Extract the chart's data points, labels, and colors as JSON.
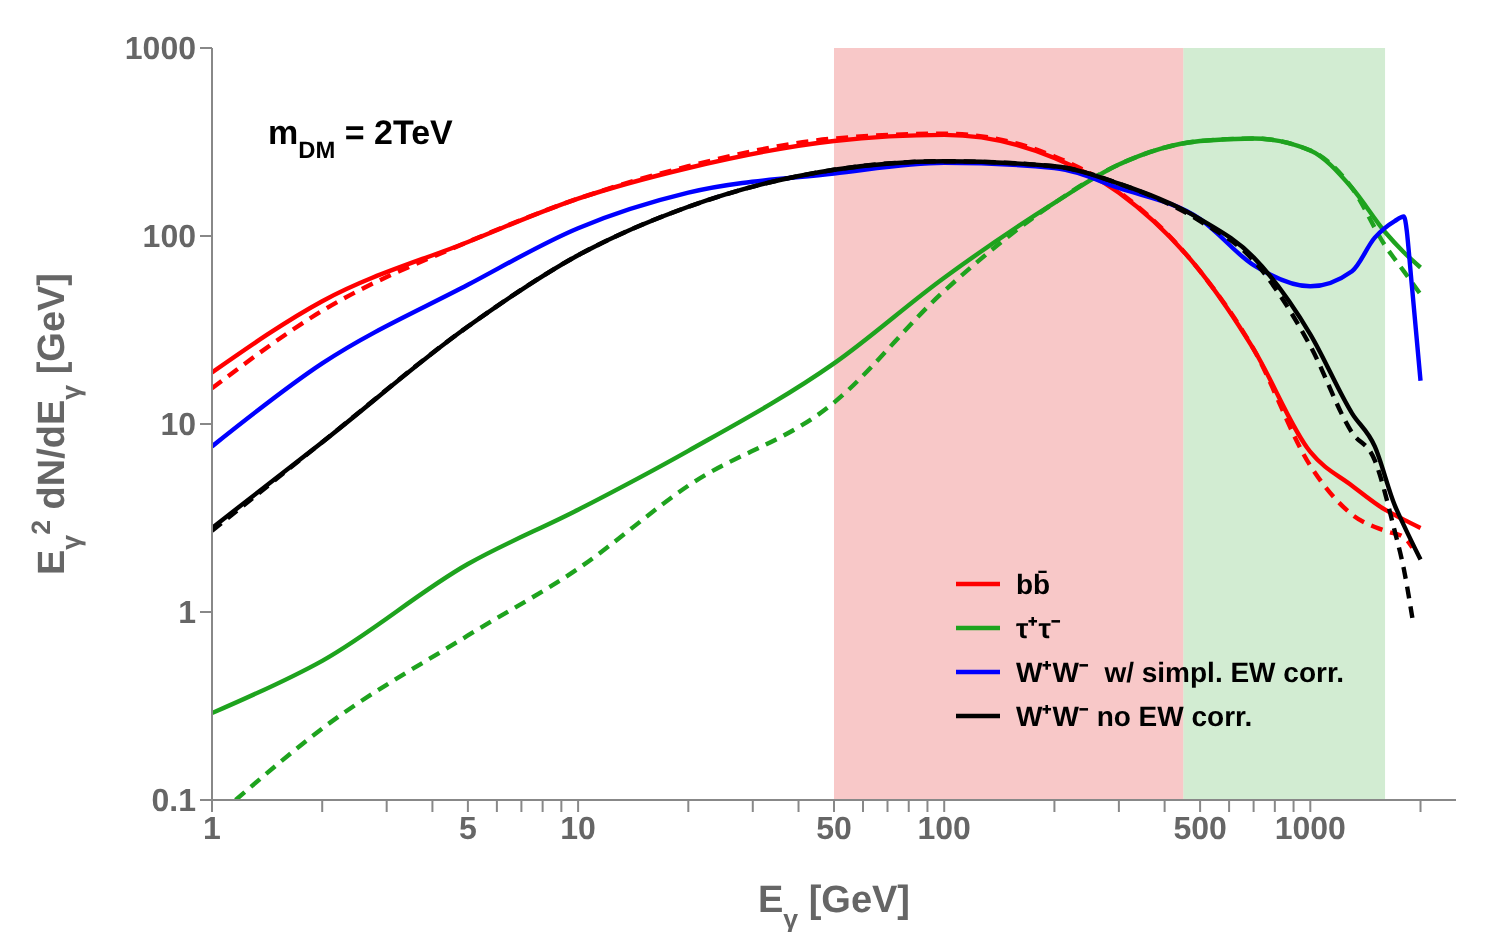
{
  "chart_data": {
    "type": "line",
    "xlabel": "E$_{γ}$ [GeV]",
    "ylabel": "E$_{γ}$$^{2}$ dN/dE$_{γ}$ [GeV]",
    "annotations": [
      "m$_{DM}$ = 2TeV"
    ],
    "log": "xy",
    "xlim": [
      1,
      2500
    ],
    "ylim": [
      0.1,
      1000
    ],
    "xticks": [
      1,
      {
        "value": 2,
        "label": null
      },
      {
        "value": 3,
        "label": null
      },
      {
        "value": 4,
        "label": null
      },
      5,
      {
        "value": 6,
        "label": null
      },
      {
        "value": 7,
        "label": null
      },
      {
        "value": 8,
        "label": null
      },
      {
        "value": 9,
        "label": null
      },
      10,
      {
        "value": 20,
        "label": null
      },
      {
        "value": 30,
        "label": null
      },
      {
        "value": 40,
        "label": null
      },
      50,
      {
        "value": 60,
        "label": null
      },
      {
        "value": 70,
        "label": null
      },
      {
        "value": 80,
        "label": null
      },
      {
        "value": 90,
        "label": null
      },
      100,
      {
        "value": 200,
        "label": null
      },
      {
        "value": 300,
        "label": null
      },
      {
        "value": 400,
        "label": null
      },
      500,
      {
        "value": 600,
        "label": null
      },
      {
        "value": 700,
        "label": null
      },
      {
        "value": 800,
        "label": null
      },
      {
        "value": 900,
        "label": null
      },
      1000,
      {
        "value": 2000,
        "label": null
      }
    ],
    "yticks": [
      0.1,
      1,
      10,
      100,
      1000
    ],
    "legend": "bottom right",
    "bands": [
      {
        "axis": "x",
        "from": 50,
        "to": 450,
        "color": "#f4a3a3"
      },
      {
        "axis": "x",
        "from": 450,
        "to": 1600,
        "color": "#b4e0b4"
      }
    ],
    "series": [
      {
        "name": "bb̄",
        "color": "#ff0000",
        "line_style": "solid",
        "x": [
          1,
          2,
          5,
          10,
          20,
          50,
          100,
          200,
          300,
          500,
          700,
          1000,
          1300,
          1600,
          1800,
          2000
        ],
        "values": [
          18.8,
          45,
          93,
          158,
          230,
          320,
          345,
          260,
          170,
          65,
          25,
          7.1,
          4.7,
          3.5,
          3.1,
          2.8
        ]
      },
      {
        "color": "#ff0000",
        "line_style": "dashed",
        "x": [
          1,
          2,
          5,
          10,
          20,
          50,
          100,
          200,
          300,
          500,
          700,
          1000,
          1300,
          1600,
          1800,
          1900
        ],
        "values": [
          15.5,
          40,
          93,
          158,
          235,
          330,
          350,
          265,
          172,
          65,
          25,
          6,
          3.3,
          2.7,
          2.5,
          2.2
        ]
      },
      {
        "name": "τ⁺τ⁻",
        "color": "#1ea31e",
        "line_style": "solid",
        "x": [
          1,
          2,
          5,
          10,
          20,
          50,
          100,
          200,
          300,
          500,
          700,
          1000,
          1300,
          1600,
          1800,
          2000
        ],
        "values": [
          0.29,
          0.55,
          1.8,
          3.5,
          7.2,
          21,
          60,
          150,
          240,
          320,
          330,
          285,
          180,
          105,
          82,
          68
        ]
      },
      {
        "color": "#1ea31e",
        "line_style": "dashed",
        "x": [
          1.16,
          2,
          5,
          10,
          20,
          50,
          100,
          200,
          300,
          500,
          700,
          1000,
          1300,
          1600,
          1800,
          2000
        ],
        "values": [
          0.1,
          0.24,
          0.75,
          1.7,
          4.7,
          13,
          51,
          150,
          240,
          320,
          330,
          285,
          180,
          89,
          65,
          49
        ]
      },
      {
        "name": "W⁺W⁻  w/ simpl. EW corr.",
        "color": "#0000ff",
        "line_style": "solid",
        "x": [
          1,
          2,
          5,
          10,
          20,
          50,
          100,
          200,
          300,
          500,
          700,
          1000,
          1300,
          1500,
          1700,
          1800,
          1900,
          2000
        ],
        "values": [
          7.6,
          21,
          55,
          110,
          170,
          215,
          245,
          230,
          180,
          123,
          70,
          54,
          65,
          98,
          120,
          127,
          51,
          17
        ]
      },
      {
        "name": "W⁺W⁻ no EW corr.",
        "color": "#000000",
        "line_style": "solid",
        "x": [
          1,
          2,
          5,
          10,
          20,
          50,
          100,
          200,
          300,
          500,
          700,
          1000,
          1300,
          1500,
          1700,
          1800,
          2000
        ],
        "values": [
          2.8,
          8,
          33,
          79,
          143,
          225,
          250,
          235,
          190,
          123,
          77,
          30,
          11.4,
          7.6,
          3.7,
          2.9,
          1.9
        ]
      },
      {
        "color": "#000000",
        "line_style": "dashed",
        "x": [
          1,
          2,
          5,
          10,
          20,
          50,
          100,
          200,
          300,
          500,
          700,
          1000,
          1300,
          1500,
          1700,
          1800,
          1900
        ],
        "values": [
          2.7,
          8,
          33,
          79,
          143,
          225,
          250,
          235,
          190,
          120,
          74,
          26,
          9,
          6.4,
          2.7,
          1.7,
          0.93
        ]
      }
    ]
  }
}
